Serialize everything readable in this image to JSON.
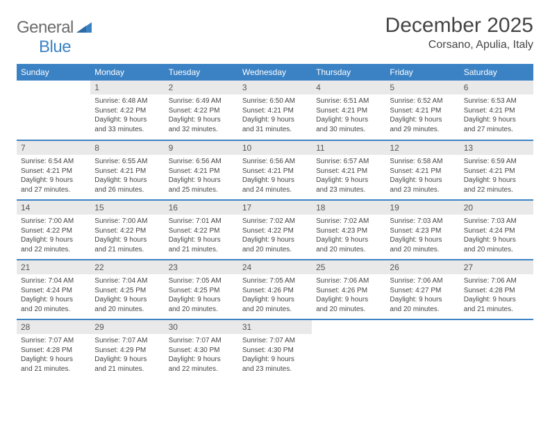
{
  "brand": {
    "part1": "General",
    "part2": "Blue"
  },
  "title": "December 2025",
  "location": "Corsano, Apulia, Italy",
  "colors": {
    "header_bg": "#3b82c4",
    "header_text": "#ffffff",
    "daynum_bg": "#e9e9e9",
    "row_border": "#3b82c4",
    "body_text": "#444444",
    "logo_gray": "#6b6b6b",
    "logo_blue": "#3b82c4",
    "page_bg": "#ffffff"
  },
  "weekdays": [
    "Sunday",
    "Monday",
    "Tuesday",
    "Wednesday",
    "Thursday",
    "Friday",
    "Saturday"
  ],
  "weeks": [
    [
      null,
      {
        "n": "1",
        "sr": "6:48 AM",
        "ss": "4:22 PM",
        "dl": "9 hours and 33 minutes."
      },
      {
        "n": "2",
        "sr": "6:49 AM",
        "ss": "4:22 PM",
        "dl": "9 hours and 32 minutes."
      },
      {
        "n": "3",
        "sr": "6:50 AM",
        "ss": "4:21 PM",
        "dl": "9 hours and 31 minutes."
      },
      {
        "n": "4",
        "sr": "6:51 AM",
        "ss": "4:21 PM",
        "dl": "9 hours and 30 minutes."
      },
      {
        "n": "5",
        "sr": "6:52 AM",
        "ss": "4:21 PM",
        "dl": "9 hours and 29 minutes."
      },
      {
        "n": "6",
        "sr": "6:53 AM",
        "ss": "4:21 PM",
        "dl": "9 hours and 27 minutes."
      }
    ],
    [
      {
        "n": "7",
        "sr": "6:54 AM",
        "ss": "4:21 PM",
        "dl": "9 hours and 27 minutes."
      },
      {
        "n": "8",
        "sr": "6:55 AM",
        "ss": "4:21 PM",
        "dl": "9 hours and 26 minutes."
      },
      {
        "n": "9",
        "sr": "6:56 AM",
        "ss": "4:21 PM",
        "dl": "9 hours and 25 minutes."
      },
      {
        "n": "10",
        "sr": "6:56 AM",
        "ss": "4:21 PM",
        "dl": "9 hours and 24 minutes."
      },
      {
        "n": "11",
        "sr": "6:57 AM",
        "ss": "4:21 PM",
        "dl": "9 hours and 23 minutes."
      },
      {
        "n": "12",
        "sr": "6:58 AM",
        "ss": "4:21 PM",
        "dl": "9 hours and 23 minutes."
      },
      {
        "n": "13",
        "sr": "6:59 AM",
        "ss": "4:21 PM",
        "dl": "9 hours and 22 minutes."
      }
    ],
    [
      {
        "n": "14",
        "sr": "7:00 AM",
        "ss": "4:22 PM",
        "dl": "9 hours and 22 minutes."
      },
      {
        "n": "15",
        "sr": "7:00 AM",
        "ss": "4:22 PM",
        "dl": "9 hours and 21 minutes."
      },
      {
        "n": "16",
        "sr": "7:01 AM",
        "ss": "4:22 PM",
        "dl": "9 hours and 21 minutes."
      },
      {
        "n": "17",
        "sr": "7:02 AM",
        "ss": "4:22 PM",
        "dl": "9 hours and 20 minutes."
      },
      {
        "n": "18",
        "sr": "7:02 AM",
        "ss": "4:23 PM",
        "dl": "9 hours and 20 minutes."
      },
      {
        "n": "19",
        "sr": "7:03 AM",
        "ss": "4:23 PM",
        "dl": "9 hours and 20 minutes."
      },
      {
        "n": "20",
        "sr": "7:03 AM",
        "ss": "4:24 PM",
        "dl": "9 hours and 20 minutes."
      }
    ],
    [
      {
        "n": "21",
        "sr": "7:04 AM",
        "ss": "4:24 PM",
        "dl": "9 hours and 20 minutes."
      },
      {
        "n": "22",
        "sr": "7:04 AM",
        "ss": "4:25 PM",
        "dl": "9 hours and 20 minutes."
      },
      {
        "n": "23",
        "sr": "7:05 AM",
        "ss": "4:25 PM",
        "dl": "9 hours and 20 minutes."
      },
      {
        "n": "24",
        "sr": "7:05 AM",
        "ss": "4:26 PM",
        "dl": "9 hours and 20 minutes."
      },
      {
        "n": "25",
        "sr": "7:06 AM",
        "ss": "4:26 PM",
        "dl": "9 hours and 20 minutes."
      },
      {
        "n": "26",
        "sr": "7:06 AM",
        "ss": "4:27 PM",
        "dl": "9 hours and 20 minutes."
      },
      {
        "n": "27",
        "sr": "7:06 AM",
        "ss": "4:28 PM",
        "dl": "9 hours and 21 minutes."
      }
    ],
    [
      {
        "n": "28",
        "sr": "7:07 AM",
        "ss": "4:28 PM",
        "dl": "9 hours and 21 minutes."
      },
      {
        "n": "29",
        "sr": "7:07 AM",
        "ss": "4:29 PM",
        "dl": "9 hours and 21 minutes."
      },
      {
        "n": "30",
        "sr": "7:07 AM",
        "ss": "4:30 PM",
        "dl": "9 hours and 22 minutes."
      },
      {
        "n": "31",
        "sr": "7:07 AM",
        "ss": "4:30 PM",
        "dl": "9 hours and 23 minutes."
      },
      null,
      null,
      null
    ]
  ],
  "labels": {
    "sunrise": "Sunrise: ",
    "sunset": "Sunset: ",
    "daylight": "Daylight: "
  }
}
